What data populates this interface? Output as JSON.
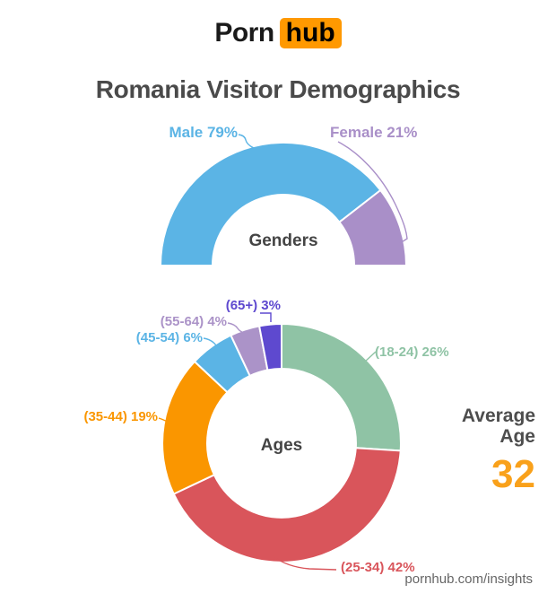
{
  "logo": {
    "part1": "Porn",
    "part2": "hub",
    "accent_color": "#ff9900"
  },
  "title": "Romania Visitor Demographics",
  "footer": "pornhub.com/insights",
  "average_age": {
    "label_line1": "Average",
    "label_line2": "Age",
    "value": "32",
    "value_color": "#f9a11b"
  },
  "chart_data": [
    {
      "type": "donut",
      "name": "genders",
      "variant": "semi-circle",
      "center_label": "Genders",
      "units": "%",
      "legend_position": "labels-with-leader-lines",
      "categories": [
        "Male",
        "Female"
      ],
      "values": [
        79,
        21
      ],
      "segments": [
        {
          "label": "Male",
          "value": 79,
          "display": "Male 79%",
          "color": "#5bb4e5"
        },
        {
          "label": "Female",
          "value": 21,
          "display": "Female 21%",
          "color": "#a98fc8"
        }
      ]
    },
    {
      "type": "donut",
      "name": "ages",
      "variant": "full-circle",
      "center_label": "Ages",
      "units": "%",
      "legend_position": "labels-with-leader-lines",
      "categories": [
        "18-24",
        "25-34",
        "35-44",
        "45-54",
        "55-64",
        "65+"
      ],
      "values": [
        26,
        42,
        19,
        6,
        4,
        3
      ],
      "segments": [
        {
          "label": "18-24",
          "value": 26,
          "display": "(18-24) 26%",
          "color": "#8fc3a5"
        },
        {
          "label": "25-34",
          "value": 42,
          "display": "(25-34) 42%",
          "color": "#d9555b"
        },
        {
          "label": "35-44",
          "value": 19,
          "display": "(35-44) 19%",
          "color": "#fa9600"
        },
        {
          "label": "45-54",
          "value": 6,
          "display": "(45-54) 6%",
          "color": "#5bb4e5"
        },
        {
          "label": "55-64",
          "value": 4,
          "display": "(55-64) 4%",
          "color": "#ab93c8"
        },
        {
          "label": "65+",
          "value": 3,
          "display": "(65+) 3%",
          "color": "#5e49cf"
        }
      ]
    }
  ]
}
